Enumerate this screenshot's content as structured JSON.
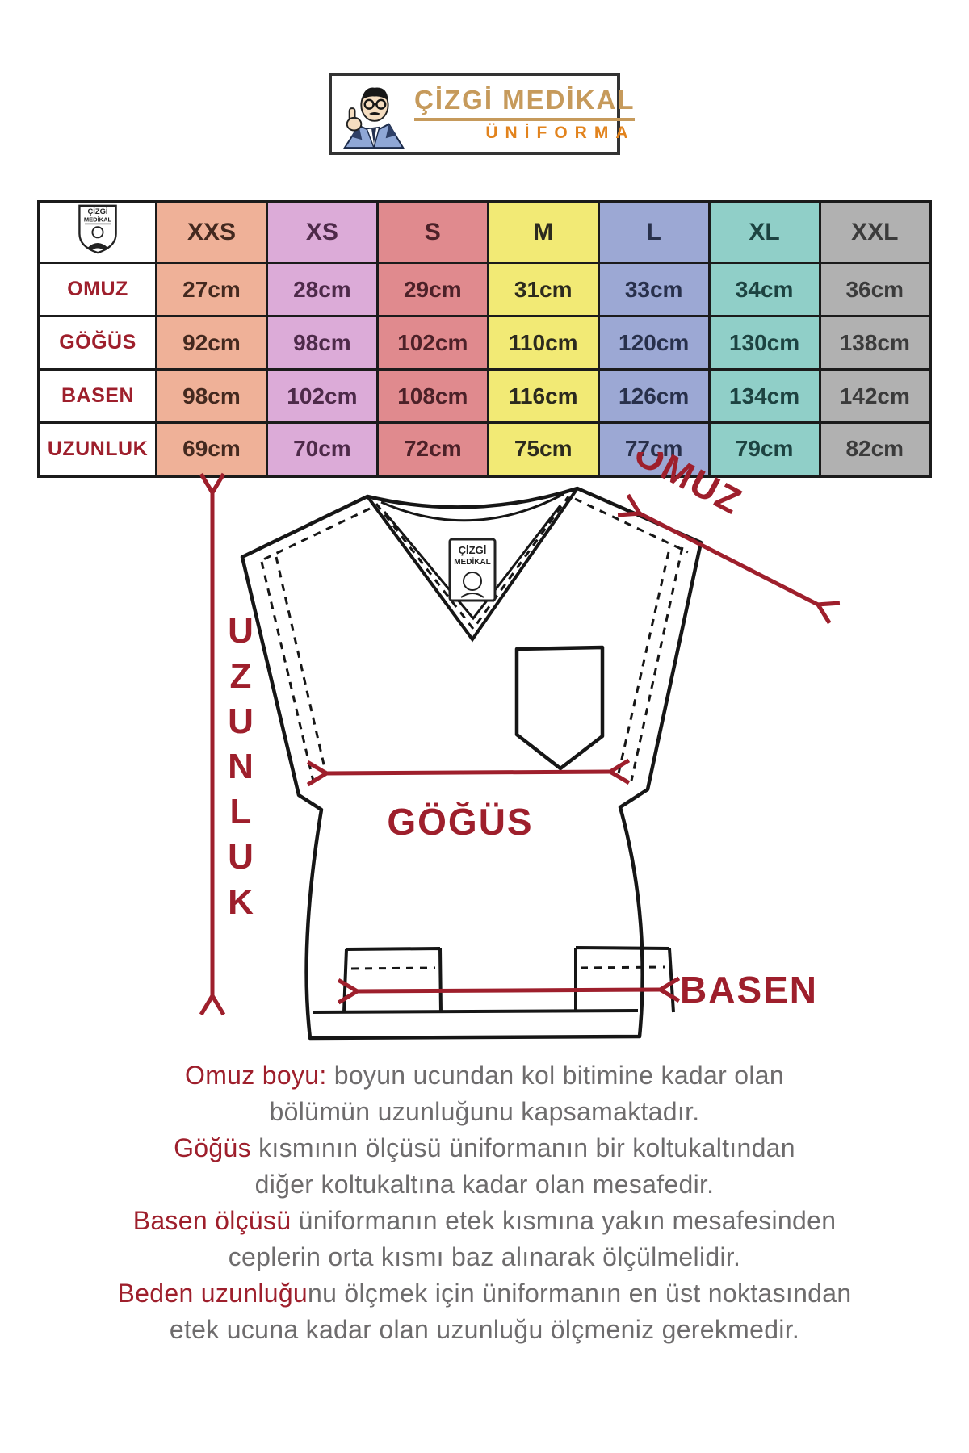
{
  "accent_red": "#9e1f2c",
  "logo": {
    "brand_line1": "ÇİZGİ MEDİKAL",
    "brand_line2": "ÜNİFORMA",
    "line1_color": "#c69a5b",
    "line2_color": "#e2831d",
    "badge_line1": "ÇİZGİ",
    "badge_line2": "MEDİKAL"
  },
  "size_table": {
    "columns": [
      {
        "label": "XXS",
        "bg": "#efb198",
        "fg": "#43291f"
      },
      {
        "label": "XS",
        "bg": "#dcabd8",
        "fg": "#4d2a49"
      },
      {
        "label": "S",
        "bg": "#e08a8e",
        "fg": "#4c2128"
      },
      {
        "label": "M",
        "bg": "#f2ea75",
        "fg": "#2c2a1e"
      },
      {
        "label": "L",
        "bg": "#9ca8d4",
        "fg": "#28304b"
      },
      {
        "label": "XL",
        "bg": "#90cfc8",
        "fg": "#1d4341"
      },
      {
        "label": "XXL",
        "bg": "#b1b1b1",
        "fg": "#3b3b3b"
      }
    ],
    "rows": [
      {
        "label": "OMUZ",
        "values": [
          "27cm",
          "28cm",
          "29cm",
          "31cm",
          "33cm",
          "34cm",
          "36cm"
        ]
      },
      {
        "label": "GÖĞÜS",
        "values": [
          "92cm",
          "98cm",
          "102cm",
          "110cm",
          "120cm",
          "130cm",
          "138cm"
        ]
      },
      {
        "label": "BASEN",
        "values": [
          "98cm",
          "102cm",
          "108cm",
          "116cm",
          "126cm",
          "134cm",
          "142cm"
        ]
      },
      {
        "label": "UZUNLUK",
        "values": [
          "69cm",
          "70cm",
          "72cm",
          "75cm",
          "77cm",
          "79cm",
          "82cm"
        ]
      }
    ]
  },
  "diagram": {
    "length_label": "UZUNLUK",
    "shoulder_label": "OMUZ",
    "chest_label": "GÖĞÜS",
    "hip_label": "BASEN"
  },
  "descriptions": [
    {
      "lead": "Omuz boyu:",
      "rest": " boyun ucundan kol bitimine kadar olan"
    },
    {
      "lead": "",
      "rest": "bölümün uzunluğunu kapsamaktadır."
    },
    {
      "lead": "Göğüs",
      "rest": " kısmının ölçüsü üniformanın bir koltukaltından"
    },
    {
      "lead": "",
      "rest": "diğer koltukaltına kadar olan mesafedir."
    },
    {
      "lead": "Basen ölçüsü",
      "rest": " üniformanın etek kısmına yakın mesafesinden"
    },
    {
      "lead": "",
      "rest": "ceplerin orta kısmı baz alınarak ölçülmelidir."
    },
    {
      "lead": "Beden uzunluğu",
      "rest": "nu ölçmek için üniformanın en üst noktasından"
    },
    {
      "lead": "",
      "rest": "etek ucuna kadar olan uzunluğu ölçmeniz gerekmedir."
    }
  ]
}
